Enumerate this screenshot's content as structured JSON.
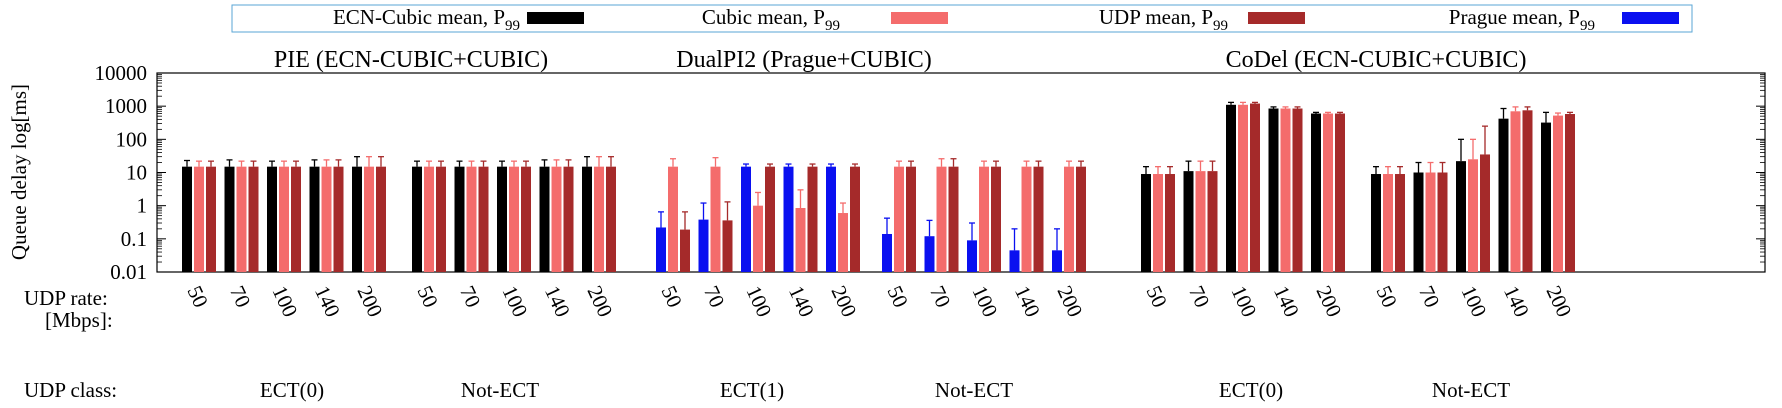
{
  "chart_data": {
    "type": "bar",
    "yscale": "log",
    "ylabel": "Queue delay log[ms]",
    "ylim": [
      0.01,
      10000
    ],
    "yticks": [
      "0.01",
      "0.1",
      "1",
      "10",
      "100",
      "1000",
      "10000"
    ],
    "row_labels": {
      "rate": "UDP rate:",
      "rate_unit": "[Mbps]:",
      "class": "UDP class:"
    },
    "legend": {
      "position": "top",
      "entries": [
        {
          "label": "ECN-Cubic mean, P",
          "sub": "99",
          "color": "#000000"
        },
        {
          "label": "Cubic mean, P",
          "sub": "99",
          "color": "#f46c6c"
        },
        {
          "label": "UDP mean, P",
          "sub": "99",
          "color": "#a52a2a"
        },
        {
          "label": "Prague mean, P",
          "sub": "99",
          "color": "#0a10f0"
        }
      ]
    },
    "series_colors": {
      "ecn_cubic": "#000000",
      "cubic": "#f46c6c",
      "udp": "#a52a2a",
      "prague": "#0a10f0"
    },
    "panels": [
      {
        "title": "PIE (ECN-CUBIC+CUBIC)",
        "groups": [
          {
            "class": "ECT(0)",
            "rates": [
              "50",
              "70",
              "100",
              "140",
              "200"
            ],
            "bars": [
              [
                [
                  "ecn_cubic",
                  15,
                  23
                ],
                [
                  "cubic",
                  15,
                  22
                ],
                [
                  "udp",
                  15,
                  22
                ]
              ],
              [
                [
                  "ecn_cubic",
                  15,
                  24
                ],
                [
                  "cubic",
                  15,
                  22
                ],
                [
                  "udp",
                  15,
                  22
                ]
              ],
              [
                [
                  "ecn_cubic",
                  15,
                  22
                ],
                [
                  "cubic",
                  15,
                  22
                ],
                [
                  "udp",
                  15,
                  22
                ]
              ],
              [
                [
                  "ecn_cubic",
                  15,
                  24
                ],
                [
                  "cubic",
                  15,
                  24
                ],
                [
                  "udp",
                  15,
                  24
                ]
              ],
              [
                [
                  "ecn_cubic",
                  15,
                  30
                ],
                [
                  "cubic",
                  15,
                  30
                ],
                [
                  "udp",
                  15,
                  30
                ]
              ]
            ]
          },
          {
            "class": "Not-ECT",
            "rates": [
              "50",
              "70",
              "100",
              "140",
              "200"
            ],
            "bars": [
              [
                [
                  "ecn_cubic",
                  15,
                  22
                ],
                [
                  "cubic",
                  15,
                  22
                ],
                [
                  "udp",
                  15,
                  22
                ]
              ],
              [
                [
                  "ecn_cubic",
                  15,
                  22
                ],
                [
                  "cubic",
                  15,
                  22
                ],
                [
                  "udp",
                  15,
                  22
                ]
              ],
              [
                [
                  "ecn_cubic",
                  15,
                  22
                ],
                [
                  "cubic",
                  15,
                  22
                ],
                [
                  "udp",
                  15,
                  22
                ]
              ],
              [
                [
                  "ecn_cubic",
                  15,
                  24
                ],
                [
                  "cubic",
                  15,
                  24
                ],
                [
                  "udp",
                  15,
                  24
                ]
              ],
              [
                [
                  "ecn_cubic",
                  15,
                  30
                ],
                [
                  "cubic",
                  15,
                  30
                ],
                [
                  "udp",
                  15,
                  30
                ]
              ]
            ]
          }
        ]
      },
      {
        "title": "DualPI2 (Prague+CUBIC)",
        "groups": [
          {
            "class": "ECT(1)",
            "rates": [
              "50",
              "70",
              "100",
              "140",
              "200"
            ],
            "bars": [
              [
                [
                  "prague",
                  0.22,
                  0.65
                ],
                [
                  "cubic",
                  15,
                  26
                ],
                [
                  "udp",
                  0.19,
                  0.65
                ]
              ],
              [
                [
                  "prague",
                  0.38,
                  1.2
                ],
                [
                  "cubic",
                  15,
                  28
                ],
                [
                  "udp",
                  0.36,
                  1.3
                ]
              ],
              [
                [
                  "prague",
                  15,
                  18
                ],
                [
                  "cubic",
                  1.0,
                  2.5
                ],
                [
                  "udp",
                  15,
                  18
                ]
              ],
              [
                [
                  "prague",
                  15,
                  18
                ],
                [
                  "cubic",
                  0.85,
                  3.0
                ],
                [
                  "udp",
                  15,
                  18
                ]
              ],
              [
                [
                  "prague",
                  15,
                  18
                ],
                [
                  "cubic",
                  0.6,
                  1.2
                ],
                [
                  "udp",
                  15,
                  18
                ]
              ]
            ]
          },
          {
            "class": "Not-ECT",
            "rates": [
              "50",
              "70",
              "100",
              "140",
              "200"
            ],
            "bars": [
              [
                [
                  "prague",
                  0.14,
                  0.42
                ],
                [
                  "cubic",
                  15,
                  22
                ],
                [
                  "udp",
                  15,
                  22
                ]
              ],
              [
                [
                  "prague",
                  0.12,
                  0.36
                ],
                [
                  "cubic",
                  15,
                  26
                ],
                [
                  "udp",
                  15,
                  26
                ]
              ],
              [
                [
                  "prague",
                  0.09,
                  0.3
                ],
                [
                  "cubic",
                  15,
                  22
                ],
                [
                  "udp",
                  15,
                  22
                ]
              ],
              [
                [
                  "prague",
                  0.045,
                  0.2
                ],
                [
                  "cubic",
                  15,
                  22
                ],
                [
                  "udp",
                  15,
                  22
                ]
              ],
              [
                [
                  "prague",
                  0.045,
                  0.2
                ],
                [
                  "cubic",
                  15,
                  22
                ],
                [
                  "udp",
                  15,
                  22
                ]
              ]
            ]
          }
        ]
      },
      {
        "title": "CoDel (ECN-CUBIC+CUBIC)",
        "groups": [
          {
            "class": "ECT(0)",
            "rates": [
              "50",
              "70",
              "100",
              "140",
              "200"
            ],
            "bars": [
              [
                [
                  "ecn_cubic",
                  9,
                  15
                ],
                [
                  "cubic",
                  9,
                  15
                ],
                [
                  "udp",
                  9,
                  15
                ]
              ],
              [
                [
                  "ecn_cubic",
                  11,
                  22
                ],
                [
                  "cubic",
                  11,
                  22
                ],
                [
                  "udp",
                  11,
                  22
                ]
              ],
              [
                [
                  "ecn_cubic",
                  1100,
                  1300
                ],
                [
                  "cubic",
                  1100,
                  1300
                ],
                [
                  "udp",
                  1200,
                  1300
                ]
              ],
              [
                [
                  "ecn_cubic",
                  850,
                  950
                ],
                [
                  "cubic",
                  850,
                  950
                ],
                [
                  "udp",
                  850,
                  950
                ]
              ],
              [
                [
                  "ecn_cubic",
                  600,
                  650
                ],
                [
                  "cubic",
                  600,
                  650
                ],
                [
                  "udp",
                  600,
                  650
                ]
              ]
            ]
          },
          {
            "class": "Not-ECT",
            "rates": [
              "50",
              "70",
              "100",
              "140",
              "200"
            ],
            "bars": [
              [
                [
                  "ecn_cubic",
                  9,
                  15
                ],
                [
                  "cubic",
                  9,
                  15
                ],
                [
                  "udp",
                  9,
                  15
                ]
              ],
              [
                [
                  "ecn_cubic",
                  10,
                  20
                ],
                [
                  "cubic",
                  10,
                  20
                ],
                [
                  "udp",
                  10,
                  20
                ]
              ],
              [
                [
                  "ecn_cubic",
                  22,
                  100
                ],
                [
                  "cubic",
                  25,
                  100
                ],
                [
                  "udp",
                  35,
                  250
                ]
              ],
              [
                [
                  "ecn_cubic",
                  420,
                  850
                ],
                [
                  "cubic",
                  700,
                  950
                ],
                [
                  "udp",
                  750,
                  950
                ]
              ],
              [
                [
                  "ecn_cubic",
                  320,
                  650
                ],
                [
                  "cubic",
                  520,
                  620
                ],
                [
                  "udp",
                  580,
                  650
                ]
              ]
            ]
          }
        ]
      }
    ]
  }
}
